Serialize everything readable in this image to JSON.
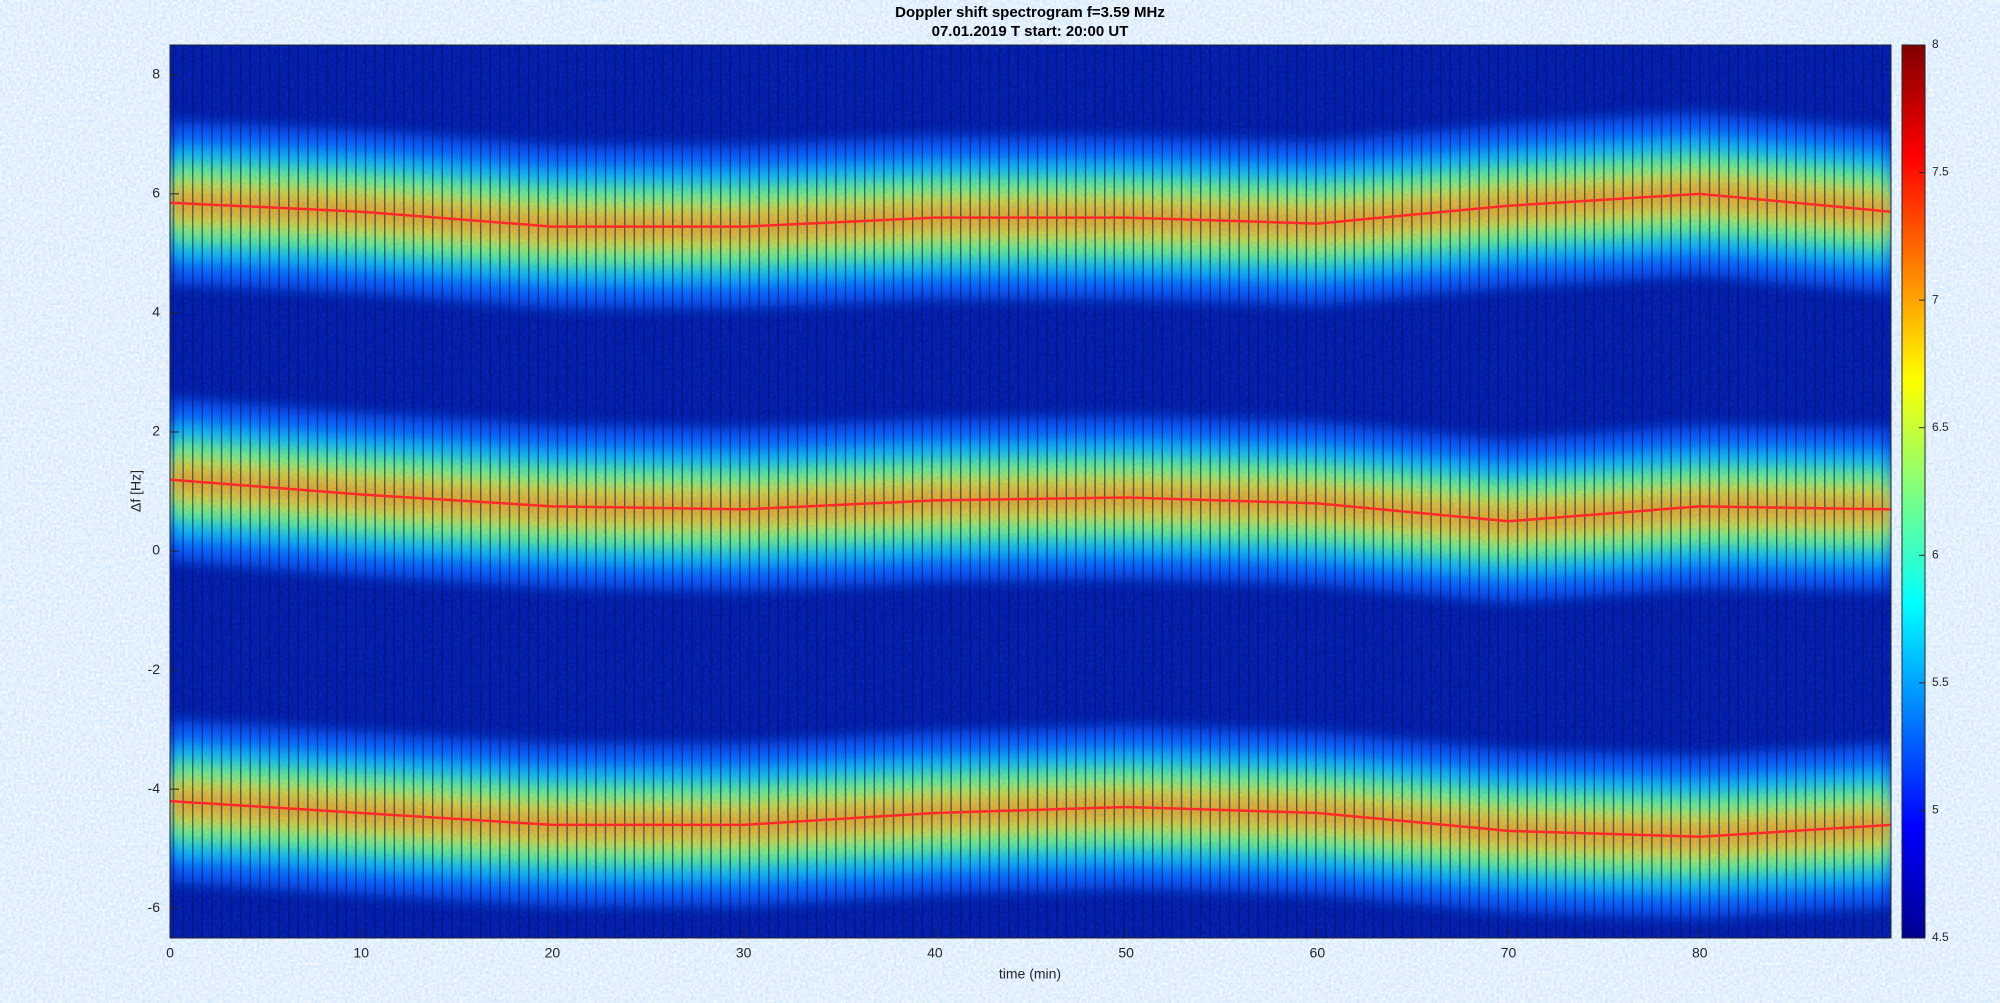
{
  "chart_data": {
    "type": "spectrogram",
    "title": "Doppler shift spectrogram f=3.59 MHz",
    "subtitle": "07.01.2019   T start: 20:00 UT",
    "xlabel": "time (min)",
    "ylabel": "Δf [Hz]",
    "xlim": [
      0,
      90
    ],
    "ylim": [
      -6.5,
      8.5
    ],
    "xticks": [
      0,
      10,
      20,
      30,
      40,
      50,
      60,
      70,
      80
    ],
    "yticks": [
      -6,
      -4,
      -2,
      0,
      2,
      4,
      6,
      8
    ],
    "colorbar": {
      "colormap": "jet",
      "clim": [
        4.5,
        8
      ],
      "ticks": [
        4.5,
        5,
        5.5,
        6,
        6.5,
        7,
        7.5,
        8
      ]
    },
    "x": [
      0,
      10,
      20,
      30,
      40,
      50,
      60,
      70,
      80,
      90
    ],
    "series": [
      {
        "color": "#ff2a2a",
        "values": [
          5.85,
          5.7,
          5.45,
          5.45,
          5.6,
          5.6,
          5.5,
          5.8,
          6.0,
          5.7
        ]
      },
      {
        "color": "#ff2a2a",
        "values": [
          1.2,
          0.95,
          0.75,
          0.7,
          0.85,
          0.9,
          0.8,
          0.5,
          0.75,
          0.7
        ]
      },
      {
        "color": "#ff2a2a",
        "values": [
          -4.2,
          -4.4,
          -4.6,
          -4.6,
          -4.4,
          -4.3,
          -4.4,
          -4.7,
          -4.8,
          -4.6
        ]
      }
    ]
  }
}
